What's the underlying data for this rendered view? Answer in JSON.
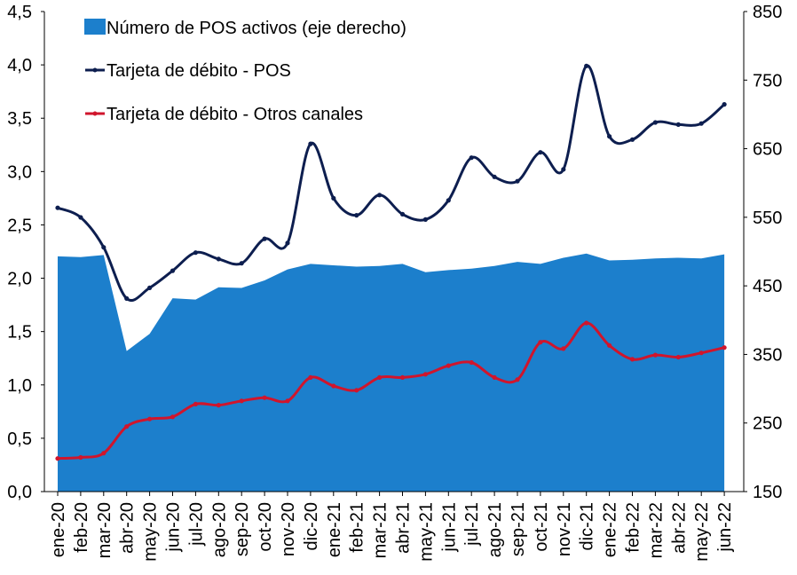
{
  "chart_data": {
    "type": "area+line",
    "categories": [
      "ene-20",
      "feb-20",
      "mar-20",
      "abr-20",
      "may-20",
      "jun-20",
      "jul-20",
      "ago-20",
      "sep-20",
      "oct-20",
      "nov-20",
      "dic-20",
      "ene-21",
      "feb-21",
      "mar-21",
      "abr-21",
      "may-21",
      "jun-21",
      "jul-21",
      "ago-21",
      "sep-21",
      "oct-21",
      "nov-21",
      "dic-21",
      "ene-22",
      "feb-22",
      "mar-22",
      "abr-22",
      "may-22",
      "jun-22"
    ],
    "y_left": {
      "min": 0,
      "max": 4.5,
      "ticks": [
        "0,0",
        "0,5",
        "1,0",
        "1,5",
        "2,0",
        "2,5",
        "3,0",
        "3,5",
        "4,0",
        "4,5"
      ]
    },
    "y_right": {
      "min": 150,
      "max": 850,
      "ticks": [
        "150",
        "250",
        "350",
        "450",
        "550",
        "650",
        "750",
        "850"
      ]
    },
    "series": [
      {
        "name": "Número de POS activos (eje derecho)",
        "kind": "area",
        "axis": "right",
        "color": "#1c7fcc",
        "values": [
          493,
          492,
          495,
          355,
          380,
          432,
          430,
          448,
          447,
          458,
          474,
          482,
          480,
          478,
          479,
          482,
          470,
          473,
          475,
          479,
          485,
          482,
          491,
          497,
          487,
          488,
          490,
          491,
          490,
          496
        ]
      },
      {
        "name": "Tarjeta de débito - POS",
        "kind": "line",
        "axis": "left",
        "color": "#0d1e4f",
        "values": [
          2.66,
          2.57,
          2.29,
          1.81,
          1.91,
          2.07,
          2.24,
          2.18,
          2.14,
          2.37,
          2.33,
          3.26,
          2.75,
          2.59,
          2.78,
          2.6,
          2.55,
          2.73,
          3.13,
          2.95,
          2.91,
          3.18,
          3.02,
          3.99,
          3.33,
          3.3,
          3.46,
          3.44,
          3.45,
          3.63
        ]
      },
      {
        "name": "Tarjeta de débito - Otros canales",
        "kind": "line",
        "axis": "left",
        "color": "#d0152c",
        "values": [
          0.31,
          0.32,
          0.36,
          0.61,
          0.68,
          0.7,
          0.82,
          0.81,
          0.85,
          0.88,
          0.85,
          1.07,
          0.99,
          0.95,
          1.07,
          1.07,
          1.1,
          1.18,
          1.21,
          1.07,
          1.05,
          1.4,
          1.34,
          1.58,
          1.37,
          1.24,
          1.28,
          1.26,
          1.3,
          1.35
        ]
      }
    ]
  }
}
